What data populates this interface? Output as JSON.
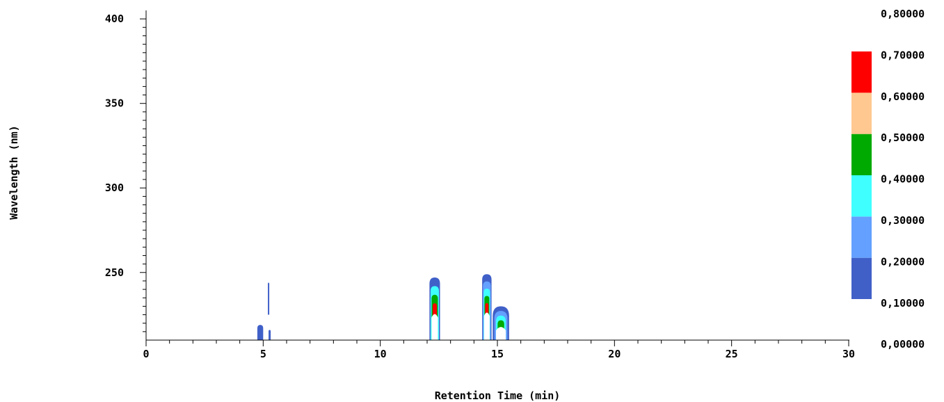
{
  "chart_data": {
    "type": "heatmap",
    "title": "",
    "xlabel": "Retention Time (min)",
    "ylabel": "Wavelength (nm)",
    "xlim": [
      0,
      30
    ],
    "ylim": [
      210,
      405
    ],
    "x_ticks": [
      0,
      5,
      10,
      15,
      20,
      25,
      30
    ],
    "x_tick_labels": [
      "0",
      "5",
      "10",
      "15",
      "20",
      "25",
      "30"
    ],
    "y_ticks": [
      250,
      300,
      350,
      400
    ],
    "y_tick_labels": [
      "250",
      "300",
      "350",
      "400"
    ],
    "grid": false,
    "colorbar": {
      "placement": "right",
      "labels": [
        "0,80000",
        "0,70000",
        "0,60000",
        "0,50000",
        "0,40000",
        "0,30000",
        "0,20000",
        "0,10000",
        "0,00000"
      ],
      "bands": [
        {
          "from": 0.1,
          "to": 0.2,
          "color": "#4060c8"
        },
        {
          "from": 0.2,
          "to": 0.3,
          "color": "#64a0ff"
        },
        {
          "from": 0.3,
          "to": 0.4,
          "color": "#40ffff"
        },
        {
          "from": 0.4,
          "to": 0.5,
          "color": "#00aa00"
        },
        {
          "from": 0.5,
          "to": 0.6,
          "color": "#ffc890"
        },
        {
          "from": 0.6,
          "to": 0.7,
          "color": "#ff0000"
        }
      ]
    },
    "peaks": [
      {
        "rt_min": 4.75,
        "rt_max": 5.0,
        "wl_top": 219,
        "levels": [
          "#4060c8"
        ]
      },
      {
        "rt_min": 5.23,
        "rt_max": 5.32,
        "wl_top": 216,
        "levels": [
          "#4060c8"
        ]
      },
      {
        "rt_min": 5.2,
        "rt_max": 5.26,
        "wl_bottom": 225,
        "wl_top": 244,
        "levels": [
          "#4060c8"
        ]
      },
      {
        "rt_min": 12.1,
        "rt_max": 12.55,
        "wl_top": 247,
        "levels": [
          "#4060c8",
          "#40ffff",
          "#00aa00",
          "#ff0000"
        ]
      },
      {
        "rt_min": 14.35,
        "rt_max": 14.75,
        "wl_top": 249,
        "levels": [
          "#4060c8",
          "#64a0ff",
          "#40ffff",
          "#00aa00",
          "#ff0000"
        ]
      },
      {
        "rt_min": 14.8,
        "rt_max": 15.5,
        "wl_top": 230,
        "levels": [
          "#4060c8",
          "#64a0ff",
          "#40ffff",
          "#00aa00"
        ]
      }
    ]
  }
}
